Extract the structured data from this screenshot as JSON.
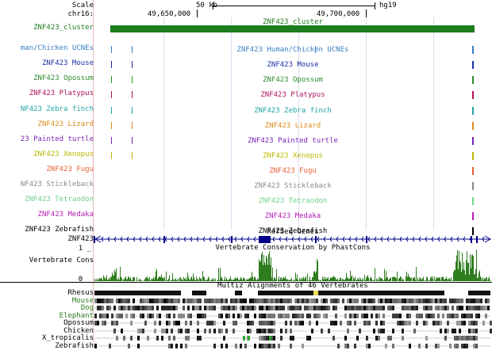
{
  "ruler": {
    "scale_label": "Scale",
    "chrom_label": "chr16:",
    "scale_value": "50 kb",
    "assembly": "hg19",
    "pos1": "49,650,000",
    "pos2": "49,700,000"
  },
  "tracks": [
    {
      "label": "ZNF423_cluster",
      "center": "ZNF423_cluster",
      "color": "#1e7d1e"
    },
    {
      "label": "man/Chicken UCNEs",
      "center": "ZNF423 Human/Chicken UCNEs",
      "color": "#3b7fc4"
    },
    {
      "label": "ZNF423 Mouse",
      "center": "ZNF423 Mouse",
      "color": "#1a2ea8"
    },
    {
      "label": "ZNF423 Opossum",
      "center": "ZNF423 Opossum",
      "color": "#2e8b2e"
    },
    {
      "label": "ZNF423 Platypus",
      "center": "ZNF423 Platypus",
      "color": "#b0125c"
    },
    {
      "label": "NF423 Zebra finch",
      "center": "ZNF423 Zebra finch",
      "color": "#1fa3a3"
    },
    {
      "label": "ZNF423 Lizard",
      "center": "ZNF423 Lizard",
      "color": "#d98a1a"
    },
    {
      "label": "23 Painted turtle",
      "center": "ZNF423 Painted turtle",
      "color": "#7b22b5"
    },
    {
      "label": "ZNF423 Xenopus",
      "center": "ZNF423 Xenopus",
      "color": "#b8b800"
    },
    {
      "label": "ZNF423 Fugu",
      "center": "ZNF423 Fugu",
      "color": "#e8613a"
    },
    {
      "label": "NF423 Stickleback",
      "center": "ZNF423 Stickleback",
      "color": "#8a8a8a"
    },
    {
      "label": "ZNF423 Tetraodon",
      "center": "ZNF423 Tetraodon",
      "color": "#6fcf8f"
    },
    {
      "label": "ZNF423 Medaka",
      "center": "ZNF423 Medaka",
      "color": "#b51ab5"
    },
    {
      "label": "ZNF423 Zebrafish",
      "center": "ZNF423 Zebrafish",
      "color": "#000000"
    }
  ],
  "refseq": {
    "label": "ZNF423",
    "center": "RefSeq Genes",
    "color": "#00008b"
  },
  "cons": {
    "label": "Vertebrate Cons",
    "center": "Vertebrate Conservation by PhastCons",
    "ymax": "1 _",
    "ymin": "0 _",
    "color": "#2e7d1e"
  },
  "multiz": {
    "center": "Multiz Alignments of 46 Vertebrates",
    "species": [
      "Rhesus",
      "Mouse",
      "Dog",
      "Elephant",
      "Opossum",
      "Chicken",
      "X_tropicalis",
      "Zebrafish"
    ],
    "colors": [
      "#000000",
      "#2e7d1e",
      "#2e7d1e",
      "#2e7d1e",
      "#000000",
      "#000000",
      "#000000",
      "#000000"
    ]
  }
}
